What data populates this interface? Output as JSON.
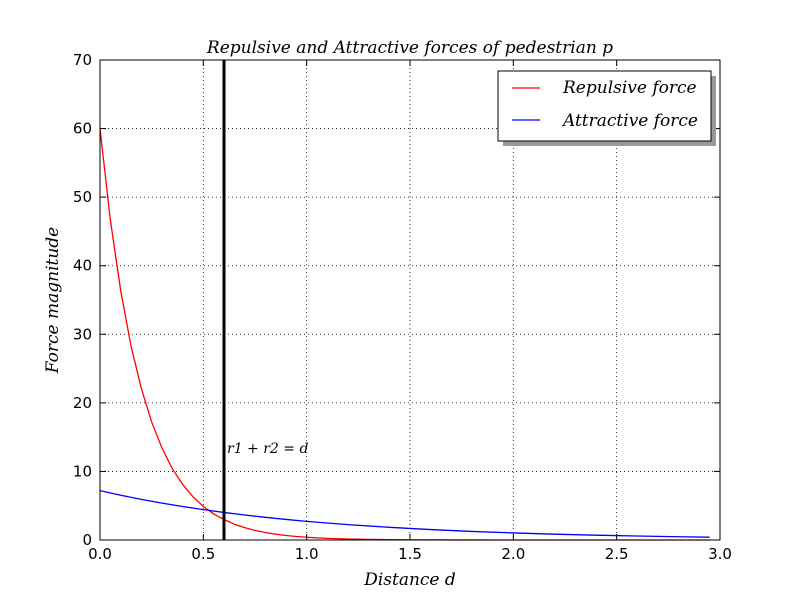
{
  "chart_data": {
    "type": "line",
    "title": "Repulsive and Attractive forces of pedestrian p",
    "xlabel": "Distance d",
    "ylabel": "Force magnitude",
    "xlim": [
      0,
      3.0
    ],
    "ylim": [
      0,
      70
    ],
    "x_ticks": [
      "0.0",
      "0.5",
      "1.0",
      "1.5",
      "2.0",
      "2.5",
      "3.0"
    ],
    "y_ticks": [
      "0",
      "10",
      "20",
      "30",
      "40",
      "50",
      "60",
      "70"
    ],
    "grid": true,
    "legend_position": "top-right",
    "series": [
      {
        "name": "Repulsive force",
        "color": "#ff0000",
        "points": [
          [
            0.0,
            60.0
          ],
          [
            0.05,
            46.7
          ],
          [
            0.1,
            36.4
          ],
          [
            0.15,
            28.3
          ],
          [
            0.2,
            22.1
          ],
          [
            0.25,
            17.2
          ],
          [
            0.3,
            13.4
          ],
          [
            0.35,
            10.4
          ],
          [
            0.4,
            8.1
          ],
          [
            0.45,
            6.3
          ],
          [
            0.5,
            4.9
          ],
          [
            0.55,
            3.8
          ],
          [
            0.6,
            3.0
          ],
          [
            0.65,
            2.3
          ],
          [
            0.7,
            1.8
          ],
          [
            0.75,
            1.4
          ],
          [
            0.8,
            1.1
          ],
          [
            0.85,
            0.85
          ],
          [
            0.9,
            0.66
          ],
          [
            0.95,
            0.51
          ],
          [
            1.0,
            0.4
          ],
          [
            1.1,
            0.24
          ],
          [
            1.2,
            0.15
          ],
          [
            1.3,
            0.09
          ],
          [
            1.4,
            0.05
          ],
          [
            1.5,
            0.03
          ],
          [
            1.75,
            0.01
          ],
          [
            2.0,
            0.0
          ],
          [
            2.5,
            0.0
          ],
          [
            2.95,
            0.0
          ]
        ]
      },
      {
        "name": "Attractive force",
        "color": "#0000ff",
        "points": [
          [
            0.0,
            7.2
          ],
          [
            0.1,
            6.53
          ],
          [
            0.2,
            5.93
          ],
          [
            0.3,
            5.38
          ],
          [
            0.4,
            4.88
          ],
          [
            0.5,
            4.43
          ],
          [
            0.6,
            4.02
          ],
          [
            0.7,
            3.64
          ],
          [
            0.8,
            3.31
          ],
          [
            0.9,
            3.0
          ],
          [
            1.0,
            2.72
          ],
          [
            1.2,
            2.24
          ],
          [
            1.4,
            1.85
          ],
          [
            1.6,
            1.52
          ],
          [
            1.8,
            1.25
          ],
          [
            2.0,
            1.03
          ],
          [
            2.2,
            0.85
          ],
          [
            2.4,
            0.7
          ],
          [
            2.6,
            0.58
          ],
          [
            2.8,
            0.47
          ],
          [
            2.95,
            0.41
          ]
        ]
      }
    ],
    "vline": {
      "x": 0.6,
      "color": "#000000",
      "label": "r1 + r2 = d"
    }
  }
}
